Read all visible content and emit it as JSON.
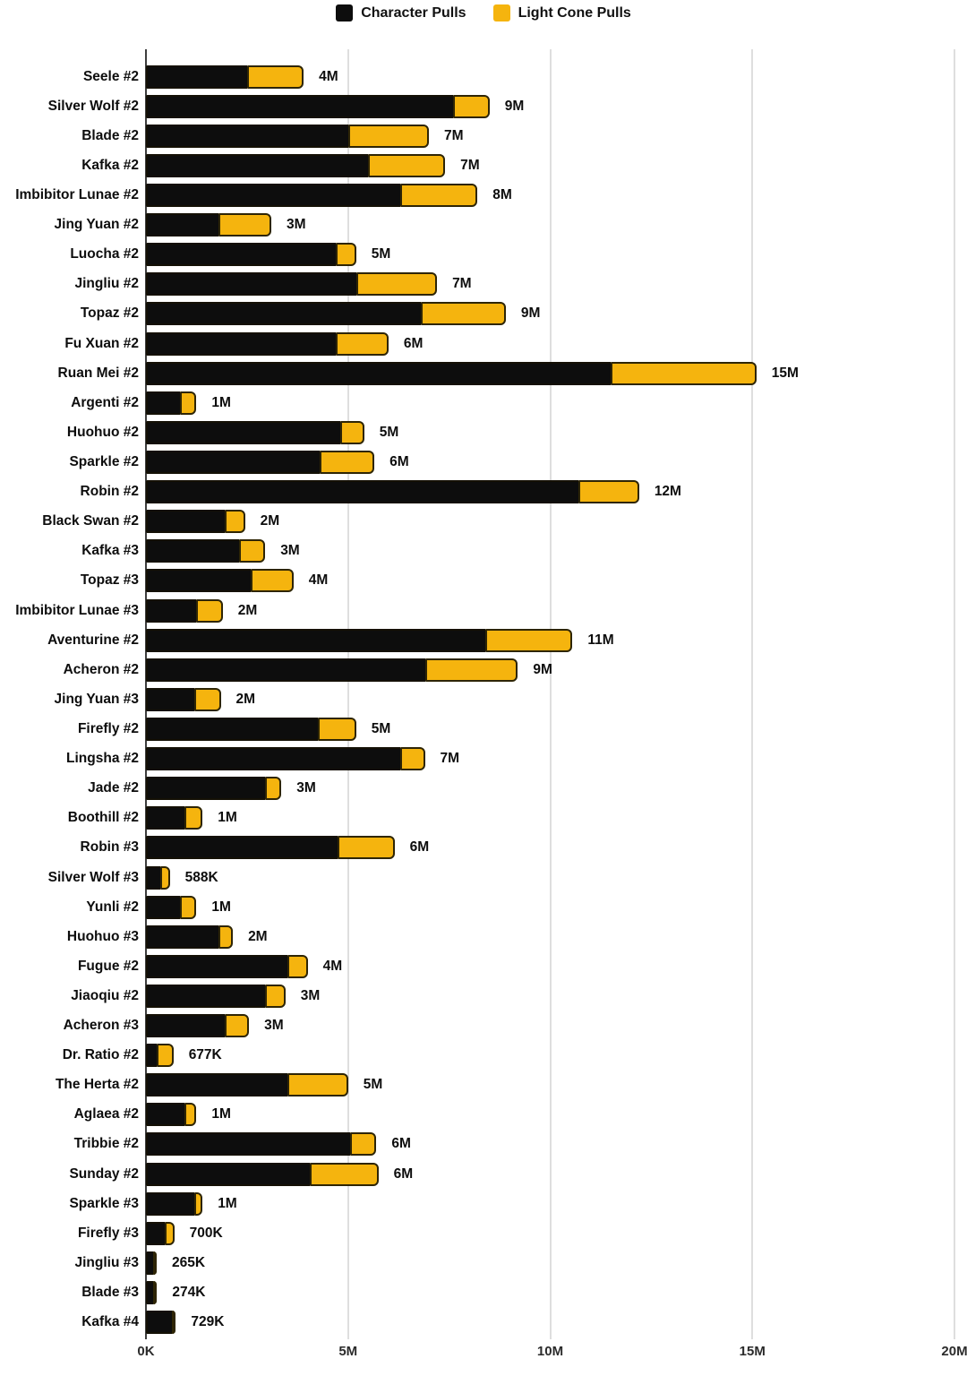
{
  "legend": {
    "items": [
      {
        "label": "Character Pulls",
        "color": "#0d0d0d"
      },
      {
        "label": "Light Cone Pulls",
        "color": "#f5b40e"
      }
    ]
  },
  "colors": {
    "character_bar": "#0d0d0d",
    "light_cone_bar": "#f5b40e",
    "light_cone_border": "#2e2505",
    "gridline": "#dedede",
    "axis_line": "#3e3e3e",
    "text": "#0d0d0d"
  },
  "chart_data": {
    "type": "bar",
    "orientation": "horizontal",
    "stacked": true,
    "title": "",
    "xlabel": "",
    "ylabel": "",
    "unit": "pulls (millions)",
    "legend_position": "top-center",
    "grid": true,
    "series_names": [
      "Character Pulls",
      "Light Cone Pulls"
    ],
    "x_axis": {
      "ticks": [
        "0K",
        "5M",
        "10M",
        "15M",
        "20M"
      ],
      "tick_values_millions": [
        0,
        5,
        10,
        15,
        20
      ],
      "range_millions": [
        0,
        20
      ]
    },
    "rows": [
      {
        "label": "Seele #2",
        "character_pulls_m": 2.5,
        "light_cone_pulls_m": 1.4,
        "total_label": "4M"
      },
      {
        "label": "Silver Wolf #2",
        "character_pulls_m": 7.6,
        "light_cone_pulls_m": 0.9,
        "total_label": "9M"
      },
      {
        "label": "Blade #2",
        "character_pulls_m": 5.0,
        "light_cone_pulls_m": 2.0,
        "total_label": "7M"
      },
      {
        "label": "Kafka #2",
        "character_pulls_m": 5.5,
        "light_cone_pulls_m": 1.9,
        "total_label": "7M"
      },
      {
        "label": "Imbibitor Lunae #2",
        "character_pulls_m": 6.3,
        "light_cone_pulls_m": 1.9,
        "total_label": "8M"
      },
      {
        "label": "Jing Yuan #2",
        "character_pulls_m": 1.8,
        "light_cone_pulls_m": 1.3,
        "total_label": "3M"
      },
      {
        "label": "Luocha #2",
        "character_pulls_m": 4.7,
        "light_cone_pulls_m": 0.5,
        "total_label": "5M"
      },
      {
        "label": "Jingliu #2",
        "character_pulls_m": 5.2,
        "light_cone_pulls_m": 2.0,
        "total_label": "7M"
      },
      {
        "label": "Topaz #2",
        "character_pulls_m": 6.8,
        "light_cone_pulls_m": 2.1,
        "total_label": "9M"
      },
      {
        "label": "Fu Xuan #2",
        "character_pulls_m": 4.7,
        "light_cone_pulls_m": 1.3,
        "total_label": "6M"
      },
      {
        "label": "Ruan Mei #2",
        "character_pulls_m": 11.5,
        "light_cone_pulls_m": 3.6,
        "total_label": "15M"
      },
      {
        "label": "Argenti #2",
        "character_pulls_m": 0.85,
        "light_cone_pulls_m": 0.4,
        "total_label": "1M"
      },
      {
        "label": "Huohuo #2",
        "character_pulls_m": 4.8,
        "light_cone_pulls_m": 0.6,
        "total_label": "5M"
      },
      {
        "label": "Sparkle #2",
        "character_pulls_m": 4.3,
        "light_cone_pulls_m": 1.35,
        "total_label": "6M"
      },
      {
        "label": "Robin #2",
        "character_pulls_m": 10.7,
        "light_cone_pulls_m": 1.5,
        "total_label": "12M"
      },
      {
        "label": "Black Swan #2",
        "character_pulls_m": 1.95,
        "light_cone_pulls_m": 0.5,
        "total_label": "2M"
      },
      {
        "label": "Kafka #3",
        "character_pulls_m": 2.3,
        "light_cone_pulls_m": 0.65,
        "total_label": "3M"
      },
      {
        "label": "Topaz #3",
        "character_pulls_m": 2.6,
        "light_cone_pulls_m": 1.05,
        "total_label": "4M"
      },
      {
        "label": "Imbibitor Lunae #3",
        "character_pulls_m": 1.25,
        "light_cone_pulls_m": 0.65,
        "total_label": "2M"
      },
      {
        "label": "Aventurine #2",
        "character_pulls_m": 8.4,
        "light_cone_pulls_m": 2.15,
        "total_label": "11M"
      },
      {
        "label": "Acheron #2",
        "character_pulls_m": 6.9,
        "light_cone_pulls_m": 2.3,
        "total_label": "9M"
      },
      {
        "label": "Jing Yuan #3",
        "character_pulls_m": 1.2,
        "light_cone_pulls_m": 0.65,
        "total_label": "2M"
      },
      {
        "label": "Firefly #2",
        "character_pulls_m": 4.25,
        "light_cone_pulls_m": 0.95,
        "total_label": "5M"
      },
      {
        "label": "Lingsha #2",
        "character_pulls_m": 6.3,
        "light_cone_pulls_m": 0.6,
        "total_label": "7M"
      },
      {
        "label": "Jade #2",
        "character_pulls_m": 2.95,
        "light_cone_pulls_m": 0.4,
        "total_label": "3M"
      },
      {
        "label": "Boothill #2",
        "character_pulls_m": 0.95,
        "light_cone_pulls_m": 0.45,
        "total_label": "1M"
      },
      {
        "label": "Robin #3",
        "character_pulls_m": 4.75,
        "light_cone_pulls_m": 1.4,
        "total_label": "6M"
      },
      {
        "label": "Silver Wolf #3",
        "character_pulls_m": 0.35,
        "light_cone_pulls_m": 0.24,
        "total_label": "588K"
      },
      {
        "label": "Yunli #2",
        "character_pulls_m": 0.85,
        "light_cone_pulls_m": 0.4,
        "total_label": "1M"
      },
      {
        "label": "Huohuo #3",
        "character_pulls_m": 1.8,
        "light_cone_pulls_m": 0.35,
        "total_label": "2M"
      },
      {
        "label": "Fugue #2",
        "character_pulls_m": 3.5,
        "light_cone_pulls_m": 0.5,
        "total_label": "4M"
      },
      {
        "label": "Jiaoqiu #2",
        "character_pulls_m": 2.95,
        "light_cone_pulls_m": 0.5,
        "total_label": "3M"
      },
      {
        "label": "Acheron #3",
        "character_pulls_m": 1.95,
        "light_cone_pulls_m": 0.6,
        "total_label": "3M"
      },
      {
        "label": "Dr. Ratio #2",
        "character_pulls_m": 0.27,
        "light_cone_pulls_m": 0.41,
        "total_label": "677K"
      },
      {
        "label": "The Herta #2",
        "character_pulls_m": 3.5,
        "light_cone_pulls_m": 1.5,
        "total_label": "5M"
      },
      {
        "label": "Aglaea #2",
        "character_pulls_m": 0.95,
        "light_cone_pulls_m": 0.3,
        "total_label": "1M"
      },
      {
        "label": "Tribbie #2",
        "character_pulls_m": 5.05,
        "light_cone_pulls_m": 0.65,
        "total_label": "6M"
      },
      {
        "label": "Sunday #2",
        "character_pulls_m": 4.05,
        "light_cone_pulls_m": 1.7,
        "total_label": "6M"
      },
      {
        "label": "Sparkle #3",
        "character_pulls_m": 1.2,
        "light_cone_pulls_m": 0.2,
        "total_label": "1M"
      },
      {
        "label": "Firefly #3",
        "character_pulls_m": 0.47,
        "light_cone_pulls_m": 0.23,
        "total_label": "700K"
      },
      {
        "label": "Jingliu #3",
        "character_pulls_m": 0.17,
        "light_cone_pulls_m": 0.095,
        "total_label": "265K"
      },
      {
        "label": "Blade #3",
        "character_pulls_m": 0.18,
        "light_cone_pulls_m": 0.094,
        "total_label": "274K"
      },
      {
        "label": "Kafka #4",
        "character_pulls_m": 0.65,
        "light_cone_pulls_m": 0.08,
        "total_label": "729K"
      }
    ]
  }
}
